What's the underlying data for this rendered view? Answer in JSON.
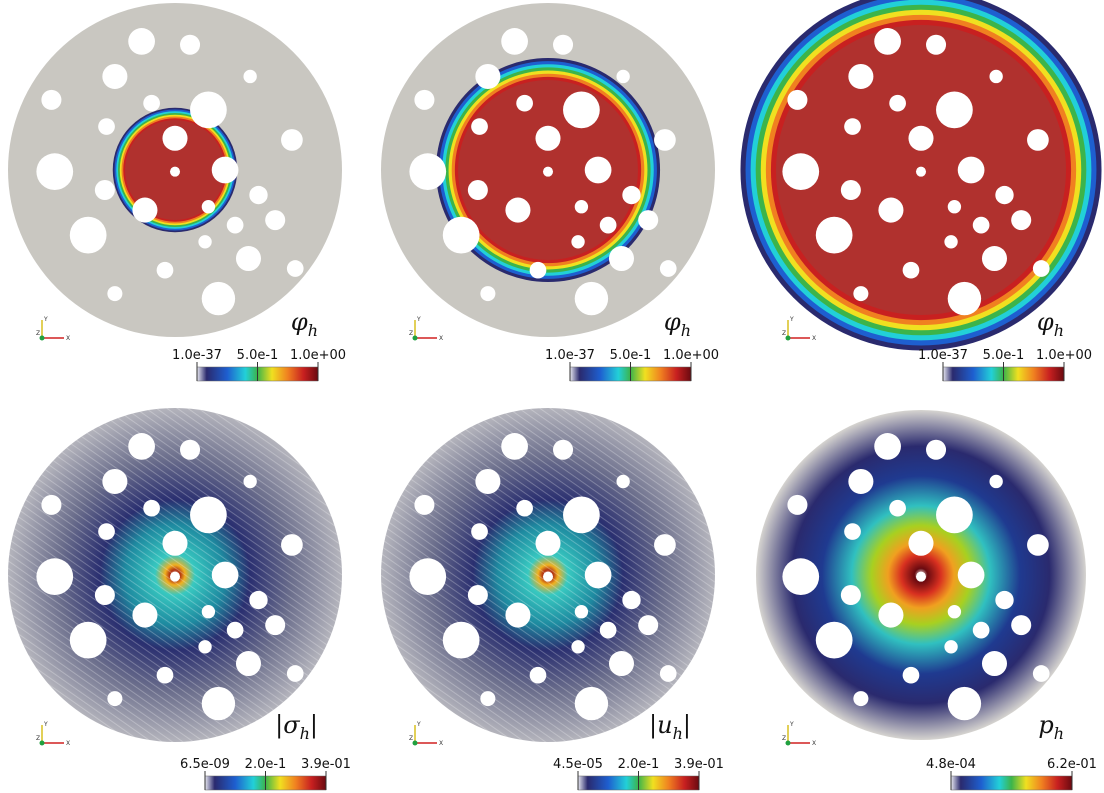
{
  "panels": [
    {
      "label": {
        "main": "φ",
        "sub": "h"
      },
      "colorbar": {
        "ticks": [
          "1.0e-37",
          "5.0e-1",
          "1.0e+00"
        ]
      }
    },
    {
      "label": {
        "main": "φ",
        "sub": "h"
      },
      "colorbar": {
        "ticks": [
          "1.0e-37",
          "5.0e-1",
          "1.0e+00"
        ]
      }
    },
    {
      "label": {
        "main": "φ",
        "sub": "h"
      },
      "colorbar": {
        "ticks": [
          "1.0e-37",
          "5.0e-1",
          "1.0e+00"
        ]
      }
    },
    {
      "label": {
        "pre": "|σ",
        "sub": "h",
        "post": "|"
      },
      "colorbar": {
        "ticks": [
          "6.5e-09",
          "2.0e-1",
          "3.9e-01"
        ]
      }
    },
    {
      "label": {
        "pre": "|u",
        "sub": "h",
        "post": "|"
      },
      "colorbar": {
        "ticks": [
          "4.5e-05",
          "2.0e-1",
          "3.9e-01"
        ]
      }
    },
    {
      "label": {
        "main": "p",
        "sub": "h"
      },
      "colorbar": {
        "ticks": [
          "4.8e-04",
          "6.2e-01"
        ]
      }
    }
  ],
  "axes_triad": {
    "y": "Y",
    "z": "Z",
    "x": "X"
  }
}
